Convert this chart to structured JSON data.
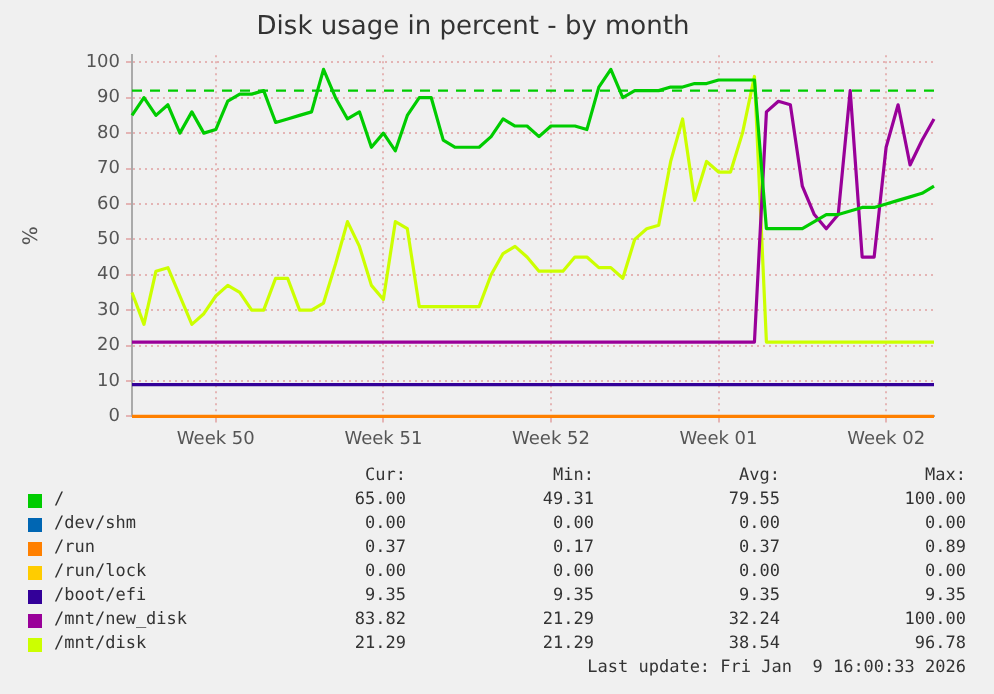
{
  "chart_data": {
    "type": "line",
    "title": "Disk usage in percent - by month",
    "ylabel": "%",
    "categories": [
      null,
      null,
      null,
      null,
      null,
      null,
      null,
      "Week 50",
      null,
      null,
      null,
      null,
      null,
      null,
      null,
      null,
      null,
      null,
      null,
      null,
      null,
      "Week 51",
      null,
      null,
      null,
      null,
      null,
      null,
      null,
      null,
      null,
      null,
      null,
      null,
      null,
      "Week 52",
      null,
      null,
      null,
      null,
      null,
      null,
      null,
      null,
      null,
      null,
      null,
      null,
      null,
      "Week 01",
      null,
      null,
      null,
      null,
      null,
      null,
      null,
      null,
      null,
      null,
      null,
      null,
      null,
      "Week 02",
      null,
      null,
      null,
      null
    ],
    "ylim": [
      0,
      102
    ],
    "yticks": [
      0,
      10,
      20,
      30,
      40,
      50,
      60,
      70,
      80,
      90,
      100
    ],
    "grid": true,
    "legend": "bottom",
    "marker": "none",
    "line_style": "solid",
    "ref_lines": [
      {
        "axis": "y",
        "value": 92,
        "color": "#00cc00",
        "line_style": "dashed"
      }
    ],
    "series": [
      {
        "name": "/",
        "color": "#00cc00",
        "values": [
          85,
          90,
          85,
          88,
          80,
          86,
          80,
          81,
          89,
          91,
          91,
          92,
          83,
          84,
          85,
          86,
          98,
          90,
          84,
          86,
          76,
          80,
          75,
          85,
          90,
          90,
          78,
          76,
          76,
          76,
          79,
          84,
          82,
          82,
          79,
          82,
          82,
          82,
          81,
          93,
          98,
          90,
          92,
          92,
          92,
          93,
          93,
          94,
          94,
          95,
          95,
          95,
          95,
          53,
          53,
          53,
          53,
          55,
          57,
          57,
          58,
          59,
          59,
          60,
          61,
          62,
          63,
          65
        ]
      },
      {
        "name": "/dev/shm",
        "color": "#0066b3",
        "values": [
          null,
          null,
          null,
          null,
          null,
          null,
          null,
          null,
          null,
          null,
          null,
          null,
          null,
          null,
          null,
          null,
          null,
          null,
          null,
          null,
          null,
          null,
          null,
          null,
          null,
          null,
          null,
          null,
          null,
          null,
          null,
          null,
          null,
          null,
          null,
          null,
          null,
          null,
          null,
          null,
          null,
          null,
          null,
          null,
          null,
          null,
          null,
          null,
          null,
          null,
          null,
          null,
          null,
          null,
          null,
          null,
          null,
          null,
          null,
          null,
          null,
          null,
          null,
          null,
          null,
          null,
          null,
          null
        ]
      },
      {
        "name": "/run",
        "color": "#ff8000",
        "values": [
          0,
          0,
          0,
          0,
          0,
          0,
          0,
          0,
          0,
          0,
          0,
          0,
          0,
          0,
          0,
          0,
          0,
          0,
          0,
          0,
          0,
          0,
          0,
          0,
          0,
          0,
          0,
          0,
          0,
          0,
          0,
          0,
          0,
          0,
          0,
          0,
          0,
          0,
          0,
          0,
          0,
          0,
          0,
          0,
          0,
          0,
          0,
          0,
          0,
          0,
          0,
          0,
          0,
          0,
          0,
          0,
          0,
          0,
          0,
          0,
          0,
          0,
          0,
          0,
          0,
          0,
          0,
          0
        ]
      },
      {
        "name": "/run/lock",
        "color": "#ffcc00",
        "values": [
          null,
          null,
          null,
          null,
          null,
          null,
          null,
          null,
          null,
          null,
          null,
          null,
          null,
          null,
          null,
          null,
          null,
          null,
          null,
          null,
          null,
          null,
          null,
          null,
          null,
          null,
          null,
          null,
          null,
          null,
          null,
          null,
          null,
          null,
          null,
          null,
          null,
          null,
          null,
          null,
          null,
          null,
          null,
          null,
          null,
          null,
          null,
          null,
          null,
          null,
          null,
          null,
          null,
          null,
          null,
          null,
          null,
          null,
          null,
          null,
          null,
          null,
          null,
          null,
          null,
          null,
          null,
          null
        ]
      },
      {
        "name": "/boot/efi",
        "color": "#330099",
        "values": [
          9,
          9,
          9,
          9,
          9,
          9,
          9,
          9,
          9,
          9,
          9,
          9,
          9,
          9,
          9,
          9,
          9,
          9,
          9,
          9,
          9,
          9,
          9,
          9,
          9,
          9,
          9,
          9,
          9,
          9,
          9,
          9,
          9,
          9,
          9,
          9,
          9,
          9,
          9,
          9,
          9,
          9,
          9,
          9,
          9,
          9,
          9,
          9,
          9,
          9,
          9,
          9,
          9,
          9,
          9,
          9,
          9,
          9,
          9,
          9,
          9,
          9,
          9,
          9,
          9,
          9,
          9,
          9
        ]
      },
      {
        "name": "/mnt/new_disk",
        "color": "#990099",
        "values": [
          21,
          21,
          21,
          21,
          21,
          21,
          21,
          21,
          21,
          21,
          21,
          21,
          21,
          21,
          21,
          21,
          21,
          21,
          21,
          21,
          21,
          21,
          21,
          21,
          21,
          21,
          21,
          21,
          21,
          21,
          21,
          21,
          21,
          21,
          21,
          21,
          21,
          21,
          21,
          21,
          21,
          21,
          21,
          21,
          21,
          21,
          21,
          21,
          21,
          21,
          21,
          21,
          21,
          86,
          89,
          88,
          65,
          57,
          53,
          57,
          92,
          45,
          45,
          76,
          88,
          71,
          78,
          84
        ]
      },
      {
        "name": "/mnt/disk",
        "color": "#ccff00",
        "values": [
          35,
          26,
          41,
          42,
          34,
          26,
          29,
          34,
          37,
          35,
          30,
          30,
          39,
          39,
          30,
          30,
          32,
          43,
          55,
          48,
          37,
          33,
          55,
          53,
          31,
          31,
          31,
          31,
          31,
          31,
          40,
          46,
          48,
          45,
          41,
          41,
          41,
          45,
          45,
          42,
          42,
          39,
          50,
          53,
          54,
          72,
          84,
          61,
          72,
          69,
          69,
          80,
          96,
          21,
          21,
          21,
          21,
          21,
          21,
          21,
          21,
          21,
          21,
          21,
          21,
          21,
          21,
          21
        ]
      }
    ],
    "annotations": [
      "Cur:",
      "Min:",
      "Avg:",
      "Max:",
      "65.00",
      "49.31",
      "79.55",
      "100.00",
      "0.00",
      "0.00",
      "0.00",
      "0.00",
      "0.37",
      "0.17",
      "0.37",
      "0.89",
      "0.00",
      "0.00",
      "0.00",
      "0.00",
      "9.35",
      "9.35",
      "9.35",
      "9.35",
      "83.82",
      "21.29",
      "32.24",
      "100.00",
      "21.29",
      "21.29",
      "38.54",
      "96.78",
      "Last update: Fri Jan  9 16:00:33 2026"
    ]
  }
}
